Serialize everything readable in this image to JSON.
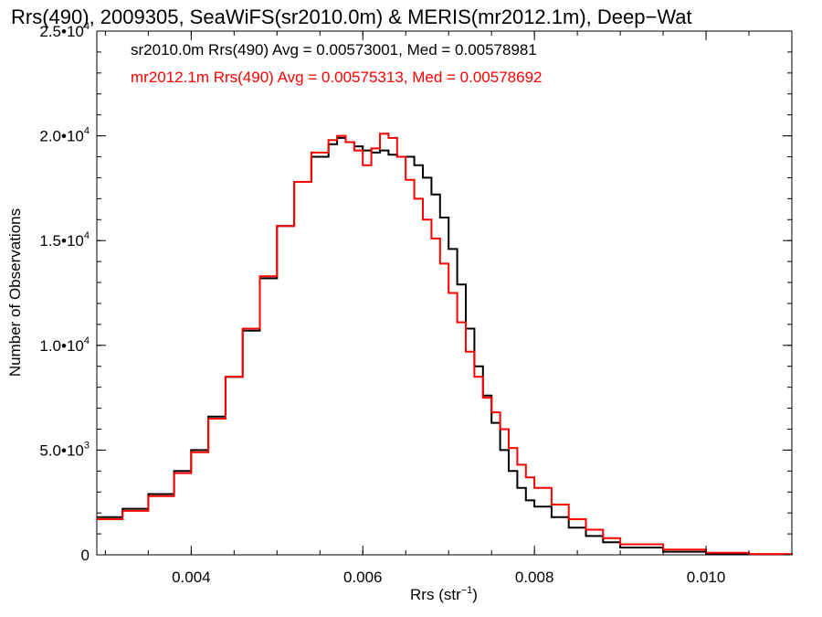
{
  "chart_data": {
    "type": "line",
    "title": "Rrs(490), 2009305, SeaWiFS(sr2010.0m) & MERIS(mr2012.1m), Deep−Wat",
    "xlabel": "Rrs (str",
    "xlabel_sup": "−1",
    "xlabel_end": ")",
    "ylabel": "Number of Observations",
    "xlim": [
      0.0029,
      0.011
    ],
    "ylim": [
      0,
      25000
    ],
    "x_ticks": [
      {
        "value": 0.004,
        "label": "0.004"
      },
      {
        "value": 0.006,
        "label": "0.006"
      },
      {
        "value": 0.008,
        "label": "0.008"
      },
      {
        "value": 0.01,
        "label": "0.010"
      }
    ],
    "y_ticks": [
      {
        "value": 0,
        "mant": "0",
        "exp": ""
      },
      {
        "value": 5000,
        "mant": "5.0•10",
        "exp": "3"
      },
      {
        "value": 10000,
        "mant": "1.0•10",
        "exp": "4"
      },
      {
        "value": 15000,
        "mant": "1.5•10",
        "exp": "4"
      },
      {
        "value": 20000,
        "mant": "2.0•10",
        "exp": "4"
      },
      {
        "value": 25000,
        "mant": "2.5•10",
        "exp": "4"
      }
    ],
    "annotations": [
      "sr2010.0m Rrs(490) Avg = 0.00573001, Med = 0.00578981",
      "mr2012.1m Rrs(490) Avg = 0.00575313, Med = 0.00578692"
    ],
    "series": [
      {
        "color": "#000000",
        "x": [
          0.0029,
          0.0032,
          0.0035,
          0.0038,
          0.004,
          0.0042,
          0.0044,
          0.0046,
          0.0048,
          0.005,
          0.0052,
          0.0054,
          0.0056,
          0.0057,
          0.0058,
          0.0059,
          0.006,
          0.0061,
          0.0062,
          0.0063,
          0.0064,
          0.0065,
          0.0066,
          0.0067,
          0.0068,
          0.0069,
          0.007,
          0.0071,
          0.0072,
          0.0073,
          0.0074,
          0.0075,
          0.0076,
          0.0077,
          0.0078,
          0.0079,
          0.008,
          0.0082,
          0.0084,
          0.0086,
          0.0088,
          0.009,
          0.0095,
          0.01,
          0.0105,
          0.011
        ],
        "y": [
          1800,
          2200,
          2900,
          4000,
          5000,
          6600,
          8500,
          10700,
          13200,
          15700,
          17800,
          19000,
          19600,
          19900,
          19700,
          19500,
          19300,
          19200,
          19300,
          19100,
          19000,
          19000,
          18600,
          18000,
          17200,
          16100,
          14600,
          12900,
          10800,
          9000,
          7600,
          6300,
          5000,
          4000,
          3200,
          2600,
          2300,
          1800,
          1300,
          900,
          600,
          350,
          150,
          60,
          20,
          0
        ]
      },
      {
        "color": "#ff0000",
        "x": [
          0.0029,
          0.0032,
          0.0035,
          0.0038,
          0.004,
          0.0042,
          0.0044,
          0.0046,
          0.0048,
          0.005,
          0.0052,
          0.0054,
          0.0056,
          0.0057,
          0.0058,
          0.0059,
          0.006,
          0.0061,
          0.0062,
          0.0063,
          0.0064,
          0.0065,
          0.0066,
          0.0067,
          0.0068,
          0.0069,
          0.007,
          0.0071,
          0.0072,
          0.0073,
          0.0074,
          0.0075,
          0.0076,
          0.0077,
          0.0078,
          0.0079,
          0.008,
          0.0082,
          0.0084,
          0.0086,
          0.0088,
          0.009,
          0.0095,
          0.01,
          0.0105,
          0.011
        ],
        "y": [
          1700,
          2100,
          2800,
          3900,
          4900,
          6500,
          8500,
          10800,
          13300,
          15700,
          17800,
          19200,
          19800,
          20000,
          19700,
          19300,
          18600,
          19400,
          20100,
          19900,
          19000,
          17900,
          17000,
          16000,
          15100,
          13900,
          12500,
          11100,
          9700,
          8500,
          7500,
          6800,
          6000,
          5100,
          4300,
          3700,
          3200,
          2400,
          1700,
          1200,
          800,
          500,
          250,
          100,
          40,
          0
        ]
      }
    ]
  }
}
